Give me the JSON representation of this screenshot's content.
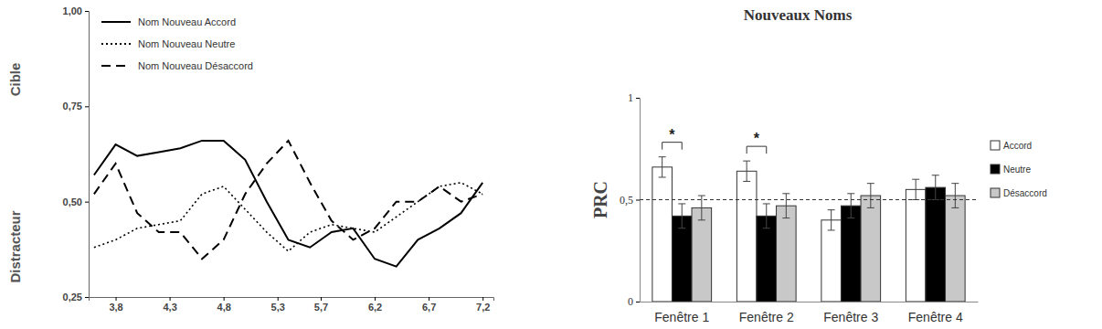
{
  "chart_data": [
    {
      "type": "line",
      "ylabel_top": "Cible",
      "ylabel_bottom": "Distracteur",
      "x": [
        3.6,
        3.8,
        4.0,
        4.2,
        4.4,
        4.6,
        4.8,
        5.0,
        5.2,
        5.4,
        5.6,
        5.8,
        6.0,
        6.2,
        6.4,
        6.6,
        6.8,
        7.0,
        7.2
      ],
      "series": [
        {
          "name": "Nom Nouveau Accord",
          "color": "#000000",
          "line_style": "solid",
          "values": [
            0.57,
            0.65,
            0.62,
            0.63,
            0.64,
            0.66,
            0.66,
            0.61,
            0.5,
            0.4,
            0.38,
            0.42,
            0.43,
            0.35,
            0.33,
            0.4,
            0.43,
            0.47,
            0.55
          ]
        },
        {
          "name": "Nom Nouveau Neutre",
          "color": "#000000",
          "line_style": "dotted",
          "values": [
            0.38,
            0.4,
            0.43,
            0.44,
            0.45,
            0.52,
            0.54,
            0.48,
            0.42,
            0.37,
            0.42,
            0.44,
            0.43,
            0.42,
            0.46,
            0.5,
            0.54,
            0.55,
            0.52
          ]
        },
        {
          "name": "Nom Nouveau Désaccord",
          "color": "#000000",
          "line_style": "dashed",
          "values": [
            0.52,
            0.6,
            0.47,
            0.42,
            0.42,
            0.35,
            0.4,
            0.52,
            0.6,
            0.66,
            0.55,
            0.45,
            0.4,
            0.43,
            0.5,
            0.5,
            0.54,
            0.5,
            0.52
          ]
        }
      ],
      "xlim": [
        3.55,
        7.3
      ],
      "xticks": [
        {
          "value": 3.8,
          "label": "3,8"
        },
        {
          "value": 4.3,
          "label": "4,3"
        },
        {
          "value": 4.8,
          "label": "4,8"
        },
        {
          "value": 5.3,
          "label": "5,3"
        },
        {
          "value": 5.7,
          "label": "5,7"
        },
        {
          "value": 6.2,
          "label": "6,2"
        },
        {
          "value": 6.7,
          "label": "6,7"
        },
        {
          "value": 7.2,
          "label": "7,2"
        }
      ],
      "ylim": [
        0.25,
        1.0
      ],
      "yticks": [
        {
          "value": 0.25,
          "label": "0,25"
        },
        {
          "value": 0.5,
          "label": "0,50"
        },
        {
          "value": 0.75,
          "label": "0,75"
        },
        {
          "value": 1,
          "label": "1,00"
        }
      ],
      "legend": "upper left"
    },
    {
      "type": "bar",
      "title": "Nouveaux Noms",
      "ylabel": "PRC",
      "categories": [
        "Fenêtre 1",
        "Fenêtre 2",
        "Fenêtre 3",
        "Fenêtre 4"
      ],
      "series": [
        {
          "name": "Accord",
          "color": "#ffffff",
          "values": [
            0.66,
            0.64,
            0.4,
            0.55
          ],
          "errors": [
            0.05,
            0.05,
            0.05,
            0.05
          ]
        },
        {
          "name": "Neutre",
          "color": "#000000",
          "values": [
            0.42,
            0.42,
            0.47,
            0.56
          ],
          "errors": [
            0.06,
            0.06,
            0.06,
            0.06
          ]
        },
        {
          "name": "Désaccord",
          "color": "#c8c8c8",
          "values": [
            0.46,
            0.47,
            0.52,
            0.52
          ],
          "errors": [
            0.06,
            0.06,
            0.06,
            0.06
          ]
        }
      ],
      "ylim": [
        0,
        1
      ],
      "yticks": [
        0,
        {
          "value": 0.5,
          "label": "0,5"
        },
        1
      ],
      "reference_line": 0.5,
      "annotations": [
        {
          "text": "*",
          "category": 0,
          "series": [
            0,
            1
          ]
        },
        {
          "text": "*",
          "category": 1,
          "series": [
            0,
            1
          ]
        }
      ],
      "legend": "right"
    }
  ]
}
